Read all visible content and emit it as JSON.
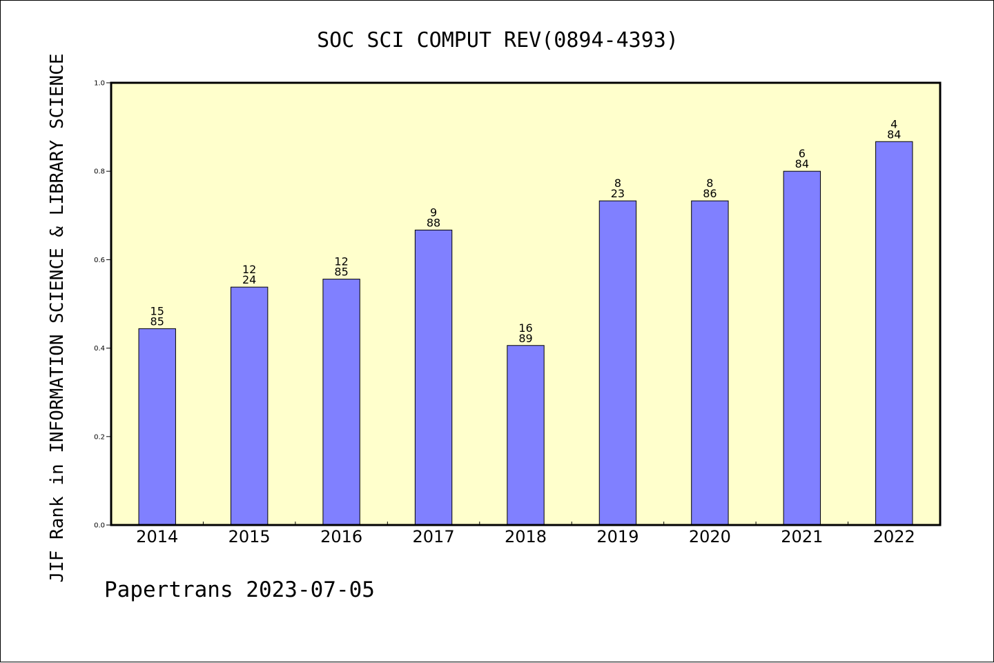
{
  "chart_data": {
    "type": "bar",
    "title": "SOC SCI COMPUT REV(0894-4393)",
    "ylabel": "JIF Rank in INFORMATION SCIENCE & LIBRARY SCIENCE",
    "xlabel": "",
    "ylim": [
      0,
      1.0
    ],
    "yticks": [
      "0.0",
      "0.2",
      "0.4",
      "0.6",
      "0.8",
      "1.0"
    ],
    "categories": [
      "2014",
      "2015",
      "2016",
      "2017",
      "2018",
      "2019",
      "2020",
      "2021",
      "2022"
    ],
    "values": [
      0.444,
      0.538,
      0.556,
      0.667,
      0.406,
      0.733,
      0.733,
      0.8,
      0.867
    ],
    "rank_top": [
      "15",
      "12",
      "12",
      "9",
      "16",
      "8",
      "8",
      "6",
      "4"
    ],
    "rank_bottom": [
      "85",
      "24",
      "85",
      "88",
      "89",
      "23",
      "86",
      "84",
      "84"
    ],
    "grid": false,
    "colors": {
      "bar": "#8080ff",
      "plot_background": "#ffffcc",
      "axis": "#000000"
    }
  },
  "footer": {
    "text": "Papertrans 2023-07-05"
  }
}
